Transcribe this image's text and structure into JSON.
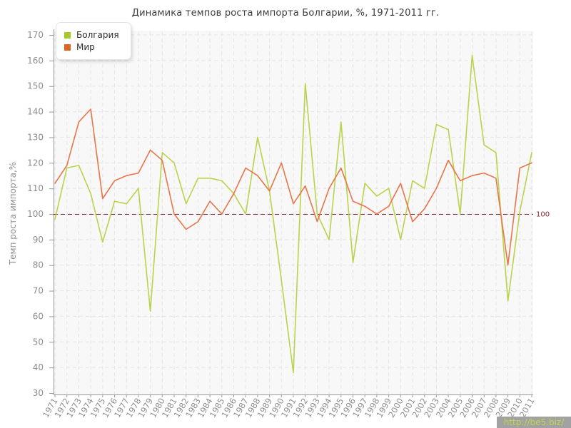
{
  "title": "Динамика темпов роста импорта Болгарии, %, 1971-2011 гг.",
  "legend": {
    "items": [
      {
        "label": "Болгария",
        "color": "#a8c825"
      },
      {
        "label": "Мир",
        "color": "#df6325"
      }
    ]
  },
  "y_axis": {
    "title": "Темп роста импорта,%",
    "min": 30,
    "max": 170,
    "step": 10
  },
  "reference_line": {
    "value": 100,
    "label": "100",
    "color": "#8e2633"
  },
  "watermark": {
    "text": "http://be5.biz/",
    "bg": "#a2a2a2",
    "fg": "#c5d44a"
  },
  "chart_data": {
    "type": "line",
    "title": "Динамика темпов роста импорта Болгарии, %, 1971-2011 гг.",
    "xlabel": "",
    "ylabel": "Темп роста импорта,%",
    "ylim": [
      30,
      170
    ],
    "grid": true,
    "legend_position": "top-left",
    "categories": [
      1971,
      1972,
      1973,
      1974,
      1975,
      1976,
      1977,
      1978,
      1979,
      1980,
      1981,
      1982,
      1983,
      1984,
      1985,
      1986,
      1987,
      1988,
      1989,
      1990,
      1991,
      1992,
      1993,
      1994,
      1995,
      1996,
      1997,
      1998,
      1999,
      2000,
      2001,
      2002,
      2003,
      2004,
      2005,
      2006,
      2007,
      2008,
      2009,
      2010,
      2011
    ],
    "series": [
      {
        "name": "Болгария",
        "color": "#b9d34a",
        "values": [
          98,
          118,
          119,
          108,
          89,
          105,
          104,
          110,
          62,
          124,
          120,
          104,
          114,
          114,
          113,
          108,
          100,
          130,
          109,
          74,
          38,
          151,
          100,
          90,
          136,
          81,
          112,
          107,
          110,
          90,
          113,
          110,
          135,
          133,
          100,
          162,
          127,
          124,
          66,
          101,
          124
        ]
      },
      {
        "name": "Мир",
        "color": "#e8754a",
        "values": [
          112,
          119,
          136,
          141,
          106,
          113,
          115,
          116,
          125,
          121,
          100,
          94,
          97,
          105,
          100,
          108,
          118,
          115,
          109,
          120,
          104,
          111,
          97,
          110,
          118,
          105,
          103,
          100,
          103,
          112,
          97,
          102,
          110,
          121,
          113,
          115,
          116,
          114,
          80,
          118,
          120
        ]
      }
    ]
  }
}
